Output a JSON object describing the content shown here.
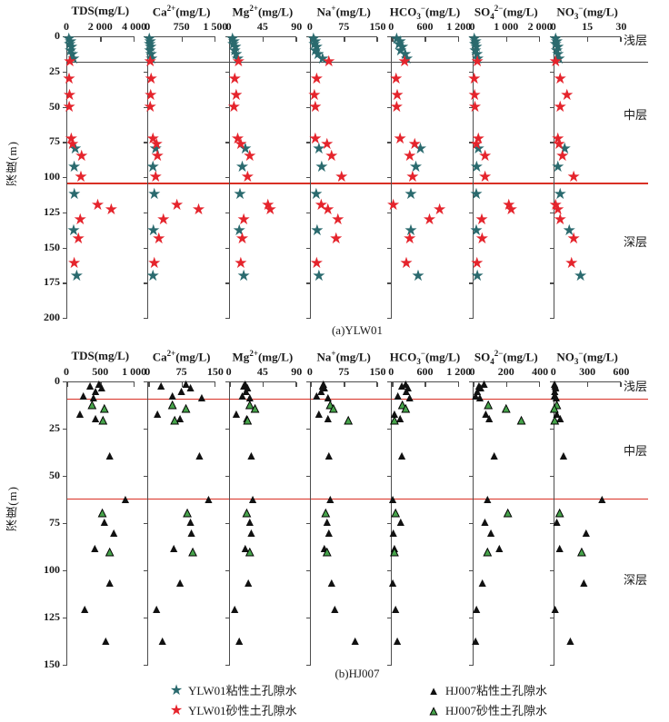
{
  "figure_title": "",
  "legend": {
    "items": [
      {
        "label": "YLW01粘性土孔隙水",
        "marker": "star",
        "color": "#2a6a6e"
      },
      {
        "label": "YLW01砂性土孔隙水",
        "marker": "star",
        "color": "#e5242c"
      },
      {
        "label": "HJ007粘性土孔隙水",
        "marker": "triangle",
        "color": "#111111"
      },
      {
        "label": "HJ007砂性土孔隙水",
        "marker": "triangle",
        "color": "#46a34a"
      }
    ]
  },
  "chart_data": [
    {
      "type": "scatter",
      "id": "a",
      "caption": "(a)YLW01",
      "ylabel": "深度(m)",
      "ylim": [
        0,
        200
      ],
      "yticks": [
        0,
        25,
        50,
        75,
        100,
        125,
        150,
        175,
        200
      ],
      "panels": [
        {
          "title": {
            "base": "TDS",
            "sub": "",
            "sup": "",
            "unit": "(mg/L)"
          },
          "xlim": [
            0,
            4000
          ],
          "xticks": [
            "0",
            "2 000",
            "4 000"
          ]
        },
        {
          "title": {
            "base": "Ca",
            "sub": "",
            "sup": "2+",
            "unit": "(mg/L)"
          },
          "xlim": [
            0,
            1500
          ],
          "xticks": [
            "0",
            "750",
            "1 500"
          ]
        },
        {
          "title": {
            "base": "Mg",
            "sub": "",
            "sup": "2+",
            "unit": "(mg/L)"
          },
          "xlim": [
            0,
            90
          ],
          "xticks": [
            "0",
            "45",
            "90"
          ]
        },
        {
          "title": {
            "base": "Na",
            "sub": "",
            "sup": "+",
            "unit": "(mg/L)"
          },
          "xlim": [
            0,
            150
          ],
          "xticks": [
            "0",
            "75",
            "150"
          ]
        },
        {
          "title": {
            "base": "HCO",
            "sub": "3",
            "sup": "−",
            "unit": "(mg/L)"
          },
          "xlim": [
            0,
            1200
          ],
          "xticks": [
            "0",
            "600",
            "1 200"
          ]
        },
        {
          "title": {
            "base": "SO",
            "sub": "4",
            "sup": "2−",
            "unit": "(mg/L)"
          },
          "xlim": [
            0,
            2000
          ],
          "xticks": [
            "0",
            "1 000",
            "2 000"
          ]
        },
        {
          "title": {
            "base": "NO",
            "sub": "3",
            "sup": "−",
            "unit": "(mg/L)"
          },
          "xlim": [
            0,
            30
          ],
          "xticks": [
            "0",
            "15",
            "30"
          ]
        }
      ],
      "layer_lines": [
        {
          "depth": 18,
          "color": "#4a4a4a"
        },
        {
          "depth": 104,
          "color": "#d93025"
        }
      ],
      "layer_labels": [
        {
          "text": "浅层",
          "depth": 7
        },
        {
          "text": "中层",
          "depth": 60
        },
        {
          "text": "深层",
          "depth": 150
        }
      ],
      "series": [
        {
          "name": "YLW01粘性土孔隙水",
          "marker": "star",
          "color": "#2a6a6e",
          "points": [
            {
              "d": 2,
              "v": [
                150,
                40,
                5,
                8,
                100,
                60,
                1
              ]
            },
            {
              "d": 4,
              "v": [
                250,
                60,
                7,
                12,
                160,
                100,
                1.5
              ]
            },
            {
              "d": 6,
              "v": [
                200,
                50,
                6,
                10,
                140,
                80,
                1
              ]
            },
            {
              "d": 8,
              "v": [
                300,
                70,
                9,
                15,
                200,
                120,
                2
              ]
            },
            {
              "d": 10,
              "v": [
                250,
                55,
                8,
                12,
                170,
                90,
                1.5
              ]
            },
            {
              "d": 13,
              "v": [
                350,
                80,
                10,
                18,
                250,
                140,
                2
              ]
            },
            {
              "d": 16,
              "v": [
                420,
                90,
                12,
                28,
                280,
                160,
                2.5
              ]
            },
            {
              "d": 80,
              "v": [
                520,
                180,
                22,
                20,
                520,
                180,
                5
              ]
            },
            {
              "d": 93,
              "v": [
                460,
                120,
                18,
                26,
                440,
                130,
                2
              ]
            },
            {
              "d": 112,
              "v": [
                470,
                150,
                15,
                14,
                350,
                120,
                3
              ]
            },
            {
              "d": 138,
              "v": [
                430,
                130,
                14,
                16,
                350,
                120,
                7
              ]
            },
            {
              "d": 170,
              "v": [
                610,
                120,
                20,
                20,
                480,
                150,
                12
              ]
            }
          ]
        },
        {
          "name": "YLW01砂性土孔隙水",
          "marker": "star",
          "color": "#e5242c",
          "points": [
            {
              "d": 18,
              "v": [
                210,
                60,
                13,
                42,
                240,
                150,
                1
              ]
            },
            {
              "d": 30,
              "v": [
                160,
                80,
                8,
                15,
                90,
                60,
                3
              ]
            },
            {
              "d": 42,
              "v": [
                190,
                70,
                10,
                10,
                110,
                70,
                6
              ]
            },
            {
              "d": 50,
              "v": [
                170,
                60,
                7,
                12,
                100,
                80,
                3
              ]
            },
            {
              "d": 73,
              "v": [
                290,
                120,
                12,
                12,
                160,
                180,
                2
              ]
            },
            {
              "d": 77,
              "v": [
                360,
                200,
                16,
                38,
                420,
                120,
                2.5
              ]
            },
            {
              "d": 85,
              "v": [
                900,
                220,
                28,
                48,
                330,
                380,
                4
              ]
            },
            {
              "d": 100,
              "v": [
                860,
                180,
                25,
                70,
                380,
                380,
                9
              ]
            },
            {
              "d": 120,
              "v": [
                1850,
                650,
                52,
                25,
                40,
                1080,
                1
              ]
            },
            {
              "d": 123,
              "v": [
                2650,
                1130,
                55,
                40,
                860,
                1150,
                2
              ]
            },
            {
              "d": 130,
              "v": [
                820,
                350,
                20,
                62,
                680,
                280,
                3
              ]
            },
            {
              "d": 144,
              "v": [
                710,
                250,
                18,
                58,
                330,
                290,
                9
              ]
            },
            {
              "d": 161,
              "v": [
                460,
                150,
                16,
                15,
                270,
                140,
                8
              ]
            }
          ]
        }
      ]
    },
    {
      "type": "scatter",
      "id": "b",
      "caption": "(b)HJ007",
      "ylabel": "深度(m)",
      "ylim": [
        0,
        150
      ],
      "yticks": [
        0,
        25,
        50,
        75,
        100,
        125,
        150
      ],
      "panels": [
        {
          "title": {
            "base": "TDS",
            "sub": "",
            "sup": "",
            "unit": "(mg/L)"
          },
          "xlim": [
            0,
            1000
          ],
          "xticks": [
            "0",
            "500",
            "1 000"
          ]
        },
        {
          "title": {
            "base": "Ca",
            "sub": "",
            "sup": "2+",
            "unit": "(mg/L)"
          },
          "xlim": [
            0,
            150
          ],
          "xticks": [
            "0",
            "75",
            "150"
          ]
        },
        {
          "title": {
            "base": "Mg",
            "sub": "",
            "sup": "2+",
            "unit": "(mg/L)"
          },
          "xlim": [
            0,
            90
          ],
          "xticks": [
            "0",
            "45",
            "90"
          ]
        },
        {
          "title": {
            "base": "Na",
            "sub": "",
            "sup": "+",
            "unit": "(mg/L)"
          },
          "xlim": [
            0,
            150
          ],
          "xticks": [
            "0",
            "75",
            "150"
          ]
        },
        {
          "title": {
            "base": "HCO",
            "sub": "3",
            "sup": "−",
            "unit": "(mg/L)"
          },
          "xlim": [
            0,
            1200
          ],
          "xticks": [
            "0",
            "600",
            "1 200"
          ]
        },
        {
          "title": {
            "base": "SO",
            "sub": "4",
            "sup": "2−",
            "unit": "(mg/L)"
          },
          "xlim": [
            0,
            400
          ],
          "xticks": [
            "0",
            "200",
            "400"
          ]
        },
        {
          "title": {
            "base": "NO",
            "sub": "3",
            "sup": "−",
            "unit": "(mg/L)"
          },
          "xlim": [
            0,
            600
          ],
          "xticks": [
            "0",
            "300",
            "600"
          ]
        }
      ],
      "layer_lines": [
        {
          "depth": 9,
          "color": "#d93025"
        },
        {
          "depth": 62,
          "color": "#d93025"
        }
      ],
      "layer_labels": [
        {
          "text": "浅层",
          "depth": 6
        },
        {
          "text": "中层",
          "depth": 40
        },
        {
          "text": "深层",
          "depth": 108
        }
      ],
      "series": [
        {
          "name": "HJ007粘性土孔隙水",
          "marker": "triangle",
          "color": "#111111",
          "points": [
            {
              "d": 2,
              "v": [
                480,
                85,
                22,
                30,
                260,
                70,
                10
              ]
            },
            {
              "d": 3,
              "v": [
                350,
                30,
                20,
                28,
                190,
                40,
                15
              ]
            },
            {
              "d": 4,
              "v": [
                520,
                95,
                25,
                32,
                300,
                50,
                20
              ]
            },
            {
              "d": 6,
              "v": [
                430,
                75,
                23,
                25,
                270,
                30,
                12
              ]
            },
            {
              "d": 8,
              "v": [
                250,
                55,
                18,
                15,
                120,
                20,
                8
              ]
            },
            {
              "d": 9,
              "v": [
                400,
                120,
                28,
                40,
                330,
                45,
                25
              ]
            },
            {
              "d": 18,
              "v": [
                200,
                22,
                10,
                20,
                60,
                80,
                30
              ]
            },
            {
              "d": 20,
              "v": [
                430,
                72,
                24,
                40,
                160,
                100,
                60
              ]
            },
            {
              "d": 40,
              "v": [
                640,
                115,
                30,
                42,
                190,
                130,
                90
              ]
            },
            {
              "d": 63,
              "v": [
                870,
                135,
                32,
                45,
                30,
                90,
                430
              ]
            },
            {
              "d": 75,
              "v": [
                560,
                95,
                28,
                38,
                170,
                75,
                30
              ]
            },
            {
              "d": 81,
              "v": [
                700,
                97,
                30,
                42,
                40,
                110,
                290
              ]
            },
            {
              "d": 89,
              "v": [
                420,
                58,
                22,
                32,
                60,
                160,
                55
              ]
            },
            {
              "d": 107,
              "v": [
                640,
                72,
                26,
                48,
                30,
                60,
                270
              ]
            },
            {
              "d": 121,
              "v": [
                270,
                20,
                8,
                55,
                80,
                25,
                15
              ]
            },
            {
              "d": 138,
              "v": [
                580,
                33,
                14,
                100,
                110,
                20,
                150
              ]
            }
          ]
        },
        {
          "name": "HJ007砂性土孔隙水",
          "marker": "triangle",
          "color": "#46a34a",
          "points": [
            {
              "d": 13,
              "v": [
                380,
                55,
                28,
                45,
                200,
                95,
                30
              ]
            },
            {
              "d": 15,
              "v": [
                560,
                85,
                35,
                52,
                260,
                200,
                8
              ]
            },
            {
              "d": 21,
              "v": [
                540,
                60,
                25,
                85,
                60,
                290,
                12
              ]
            },
            {
              "d": 70,
              "v": [
                530,
                88,
                24,
                35,
                80,
                210,
                55
              ]
            },
            {
              "d": 91,
              "v": [
                640,
                100,
                28,
                38,
                60,
                90,
                250
              ]
            }
          ]
        }
      ]
    }
  ]
}
